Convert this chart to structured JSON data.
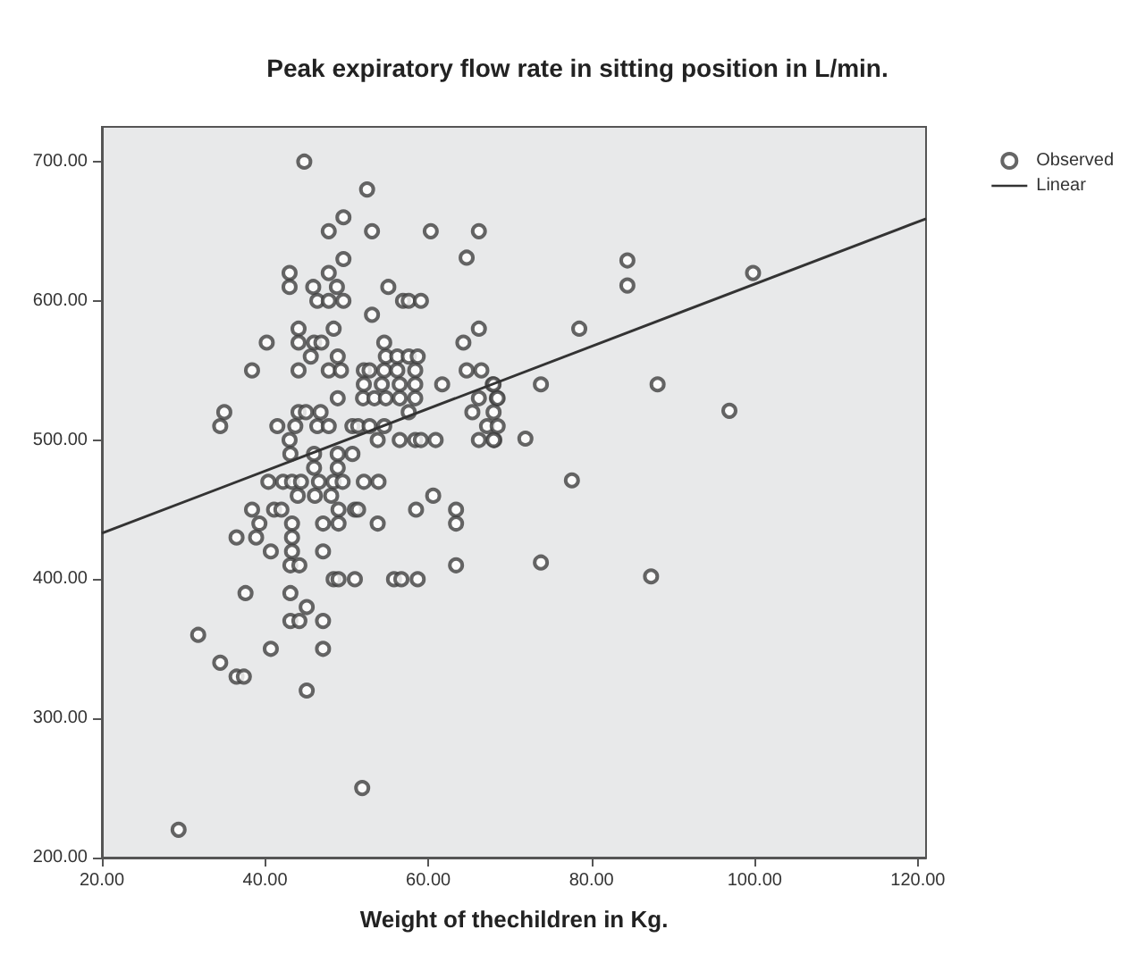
{
  "chart_data": {
    "type": "scatter",
    "title": "Peak expiratory flow rate in sitting position in L/min.",
    "xlabel": "Weight of thechildren in Kg.",
    "xlim": [
      20,
      121
    ],
    "ylim": [
      200,
      725
    ],
    "xticks": [
      {
        "value": 20,
        "label": "20.00"
      },
      {
        "value": 40,
        "label": "40.00"
      },
      {
        "value": 60,
        "label": "60.00"
      },
      {
        "value": 80,
        "label": "80.00"
      },
      {
        "value": 100,
        "label": "100.00"
      },
      {
        "value": 120,
        "label": "120.00"
      }
    ],
    "yticks": [
      {
        "value": 200,
        "label": "200.00"
      },
      {
        "value": 300,
        "label": "300.00"
      },
      {
        "value": 400,
        "label": "400.00"
      },
      {
        "value": 500,
        "label": "500.00"
      },
      {
        "value": 600,
        "label": "600.00"
      },
      {
        "value": 700,
        "label": "700.00"
      }
    ],
    "grid": false,
    "legend": "top right",
    "marker": "circle",
    "series": [
      {
        "name": "Observed",
        "color": "#404040",
        "x": [
          44.8,
          52.5,
          49.6,
          47.8,
          53.1,
          60.3,
          66.2,
          49.6,
          64.7,
          43,
          47.8,
          43,
          45.9,
          48.8,
          55.1,
          46.4,
          47.8,
          49.6,
          56.9,
          57.6,
          59.1,
          53.1,
          44.1,
          48.4,
          66.2,
          40.2,
          44.1,
          46,
          46.9,
          54.6,
          64.3,
          45.6,
          48.9,
          54.8,
          56.2,
          57.6,
          58.7,
          38.4,
          44.1,
          47.8,
          49.3,
          52.1,
          52.8,
          54.6,
          56.2,
          58.4,
          64.7,
          66.5,
          52.1,
          54.3,
          56.5,
          58.4,
          61.7,
          67.9,
          48.9,
          52,
          53.4,
          54.8,
          56.5,
          58.4,
          66.2,
          68.4,
          35,
          44.1,
          45,
          46.8,
          57.6,
          65.4,
          34.5,
          41.5,
          43.7,
          46.4,
          47.8,
          50.7,
          51.4,
          52.8,
          54.6,
          67.2,
          43,
          53.8,
          56.5,
          58.4,
          59.1,
          60.9,
          66.2,
          68.1,
          43.1,
          46,
          48.9,
          50.7,
          46,
          48.9,
          40.4,
          42.2,
          43.3,
          44.4,
          46.6,
          48.4,
          49.5,
          52.1,
          53.9,
          44,
          46.1,
          48.1,
          60.6,
          38.4,
          41.1,
          42,
          49,
          51,
          51.4,
          58.5,
          63.4,
          39.3,
          43.3,
          47.1,
          49,
          53.8,
          63.4,
          36.5,
          38.9,
          43.3,
          40.7,
          43.3,
          47.1,
          43.1,
          44.2,
          63.4,
          48.4,
          49,
          51,
          55.8,
          56.7,
          58.7,
          37.6,
          43.1,
          45.1,
          43.1,
          44.2,
          47.1,
          31.8,
          40.7,
          47.1,
          34.5,
          36.5,
          37.4,
          45.1,
          51.9,
          29.4,
          84.4,
          84.4,
          99.8,
          78.5,
          73.8,
          88.1,
          96.9,
          71.9,
          77.6,
          73.8,
          87.3,
          68,
          68.5,
          68,
          68.5,
          68
        ],
        "values": [
          700,
          680,
          660,
          650,
          650,
          650,
          650,
          630,
          631,
          620,
          620,
          610,
          610,
          610,
          610,
          600,
          600,
          600,
          600,
          600,
          600,
          590,
          580,
          580,
          580,
          570,
          570,
          570,
          570,
          570,
          570,
          560,
          560,
          560,
          560,
          560,
          560,
          550,
          550,
          550,
          550,
          550,
          550,
          550,
          550,
          550,
          550,
          550,
          540,
          540,
          540,
          540,
          540,
          540,
          530,
          530,
          530,
          530,
          530,
          530,
          530,
          530,
          520,
          520,
          520,
          520,
          520,
          520,
          510,
          510,
          510,
          510,
          510,
          510,
          510,
          510,
          510,
          510,
          500,
          500,
          500,
          500,
          500,
          500,
          500,
          500,
          490,
          490,
          490,
          490,
          480,
          480,
          470,
          470,
          470,
          470,
          470,
          470,
          470,
          470,
          470,
          460,
          460,
          460,
          460,
          450,
          450,
          450,
          450,
          450,
          450,
          450,
          450,
          440,
          440,
          440,
          440,
          440,
          440,
          430,
          430,
          430,
          420,
          420,
          420,
          410,
          410,
          410,
          400,
          400,
          400,
          400,
          400,
          400,
          390,
          390,
          380,
          370,
          370,
          370,
          360,
          350,
          350,
          340,
          330,
          330,
          320,
          250,
          220,
          629,
          611,
          620,
          580,
          540,
          540,
          521,
          501,
          471,
          412,
          402,
          540,
          530,
          520,
          510,
          500
        ]
      },
      {
        "name": "Linear",
        "type": "line",
        "color": "#333333",
        "marker": "none",
        "line_style": "solid",
        "x": [
          20,
          121
        ],
        "values": [
          433,
          659
        ]
      }
    ]
  }
}
